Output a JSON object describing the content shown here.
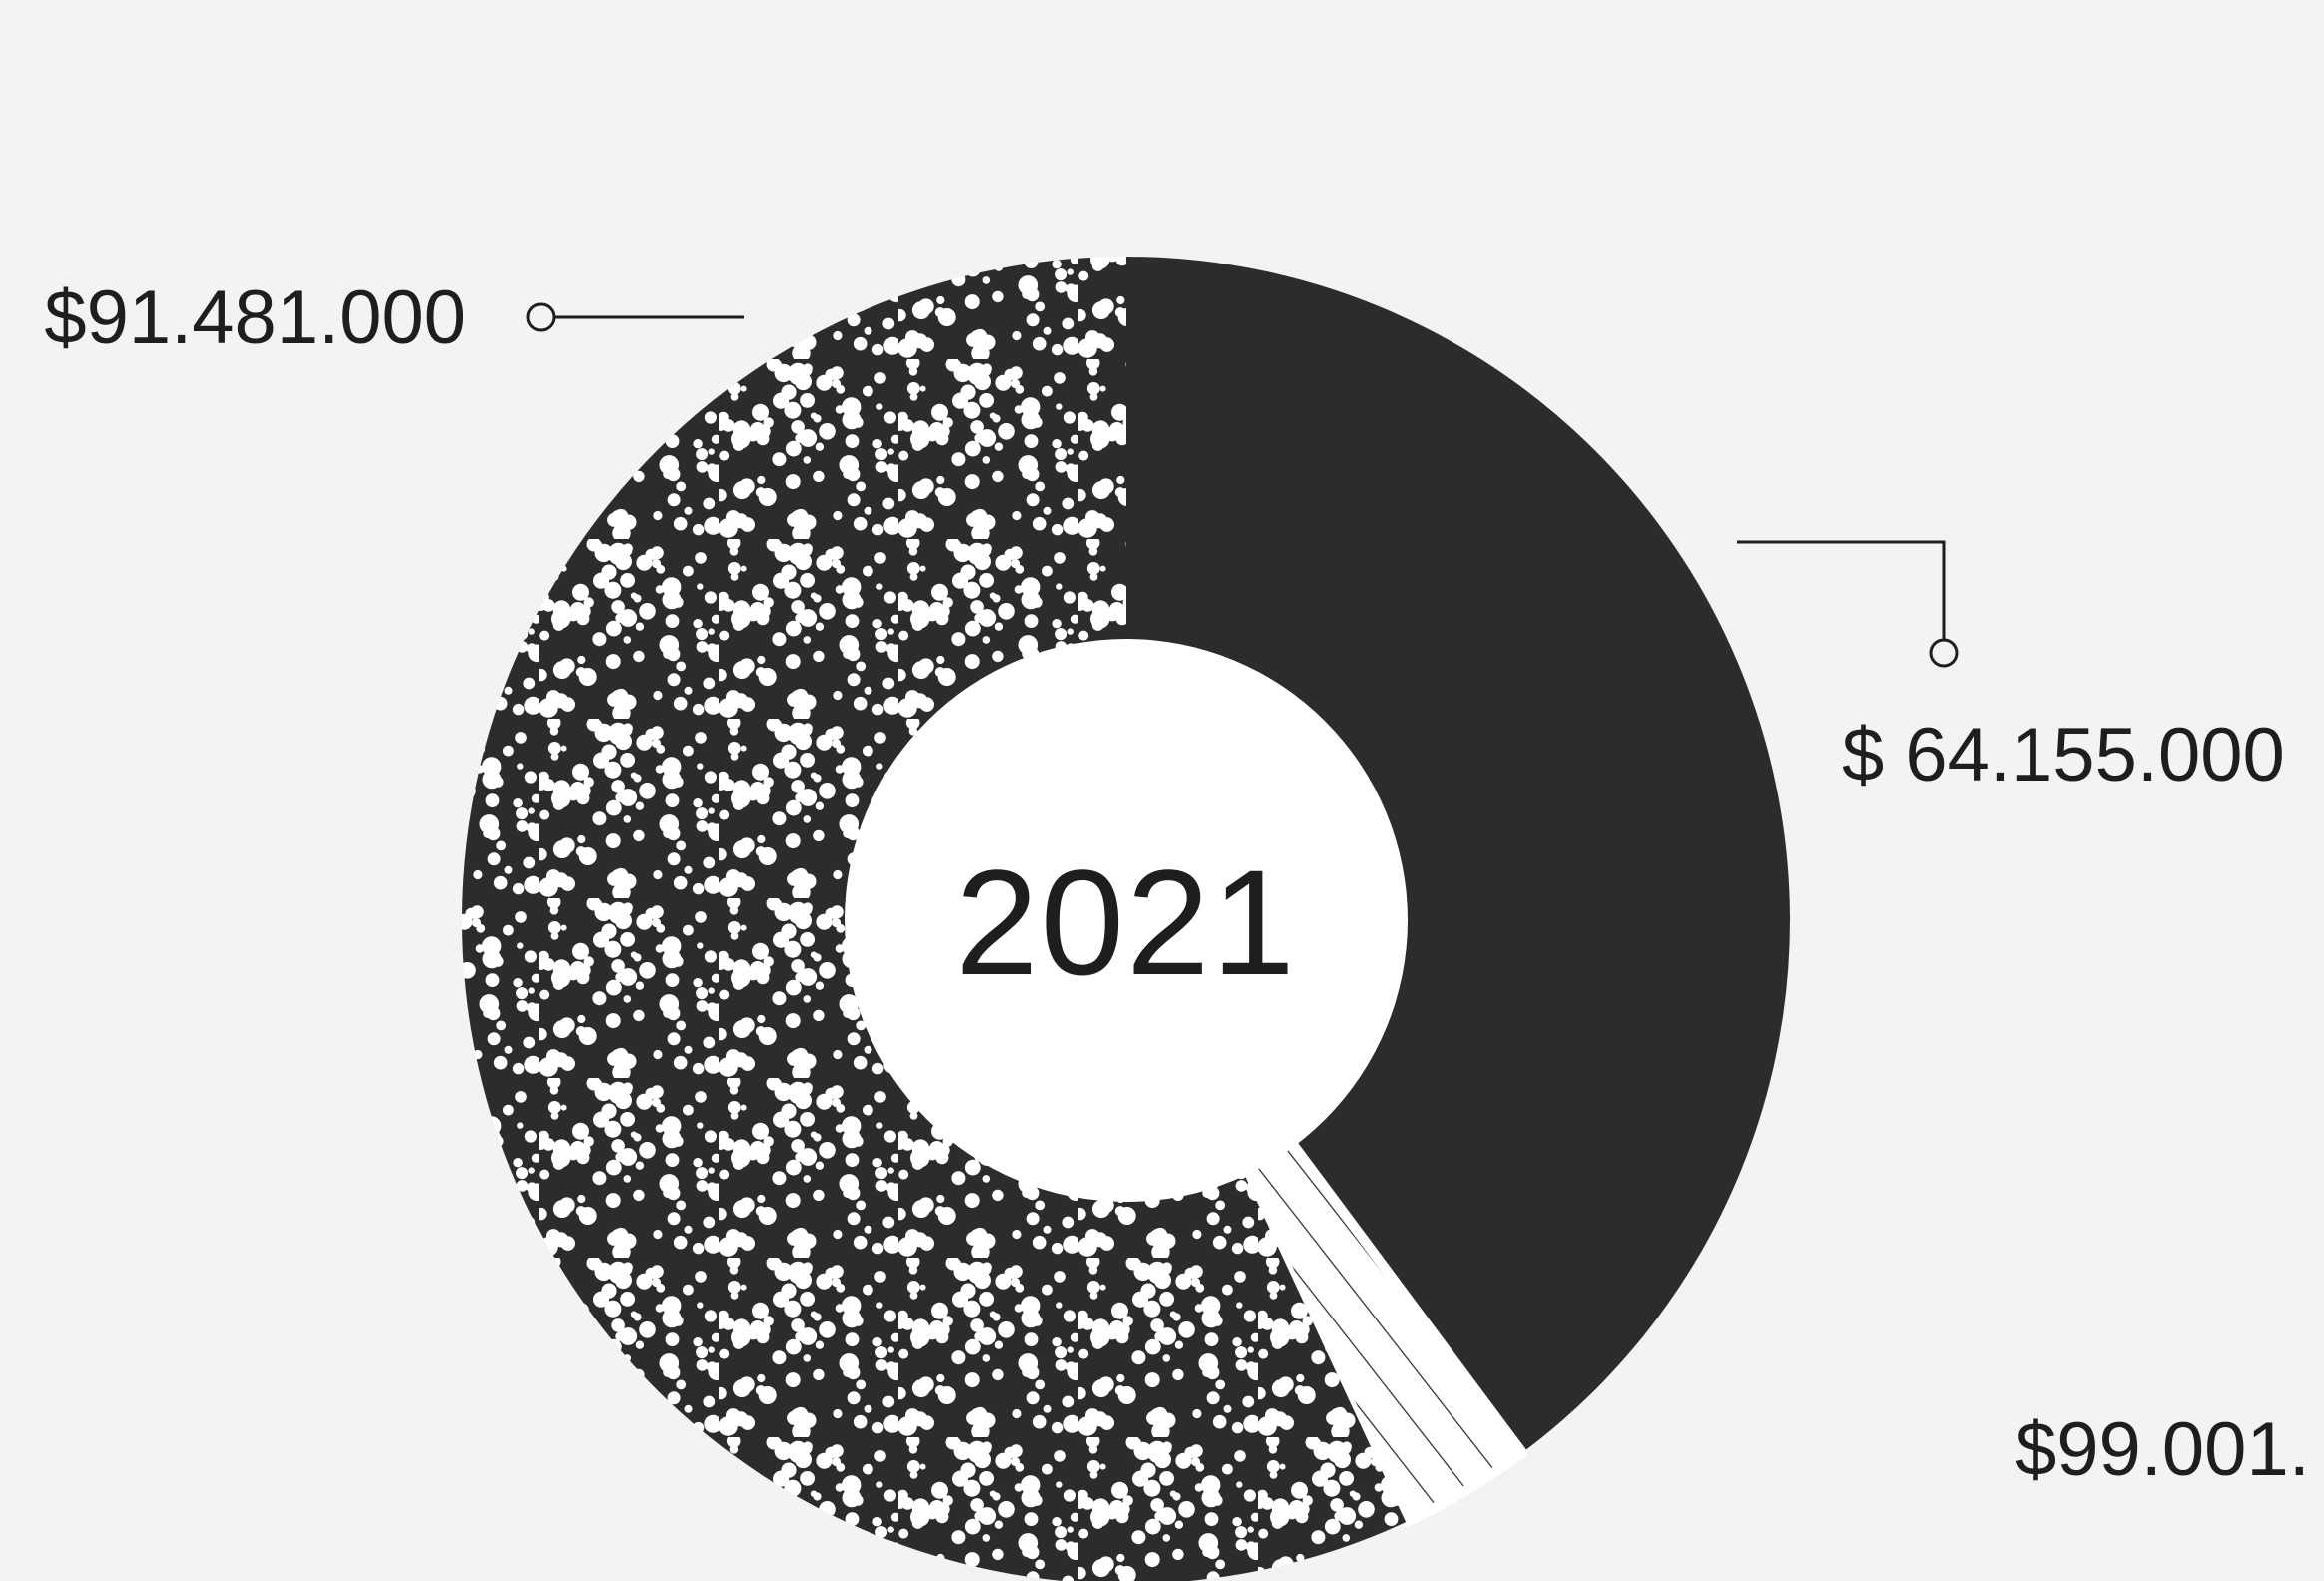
{
  "chart_data": {
    "type": "pie",
    "title": "2021",
    "slices": [
      {
        "label": "$ 64.155.000",
        "value": 64155000,
        "pattern": "solid"
      },
      {
        "label": "$99.001.",
        "value": 99001000,
        "pattern": "hatch"
      },
      {
        "label": "$91.481.000",
        "value": 91481000,
        "pattern": "speckle"
      }
    ],
    "visible_sweep": [
      0.3982,
      0.0326,
      0.5692
    ],
    "colors": {
      "dark": "#2c2c2e",
      "background": "#f3f3f3",
      "hole": "#ffffff",
      "line": "#1e1e1e"
    }
  }
}
